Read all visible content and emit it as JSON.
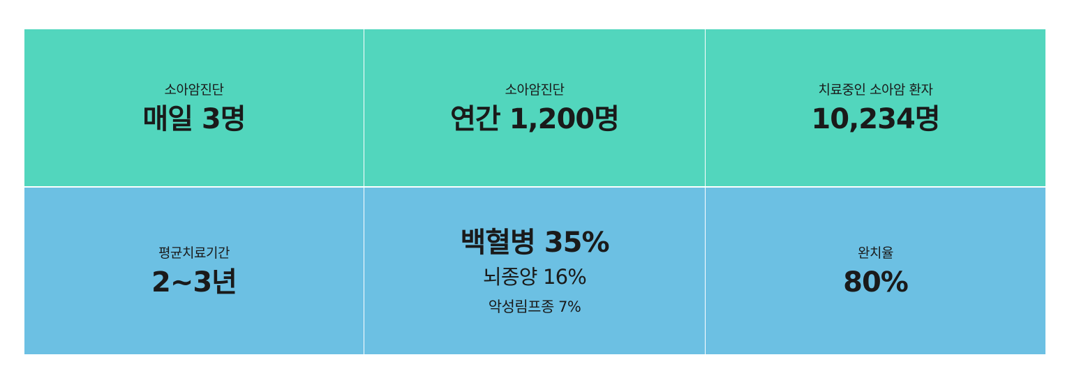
{
  "colors": {
    "top_row": "#52d6bd",
    "bottom_row": "#6cc0e3"
  },
  "stats": {
    "daily": {
      "label": "소아암진단",
      "value": "매일 3명"
    },
    "annual": {
      "label": "소아암진단",
      "value": "연간 1,200명"
    },
    "patients": {
      "label": "치료중인 소아암 환자",
      "value": "10,234명"
    },
    "duration": {
      "label": "평균치료기간",
      "value": "2~3년"
    },
    "breakdown": [
      {
        "text": "백혈병 35%"
      },
      {
        "text": "뇌종양 16%"
      },
      {
        "text": "악성림프종 7%"
      }
    ],
    "cure": {
      "label": "완치율",
      "value": "80%"
    }
  }
}
